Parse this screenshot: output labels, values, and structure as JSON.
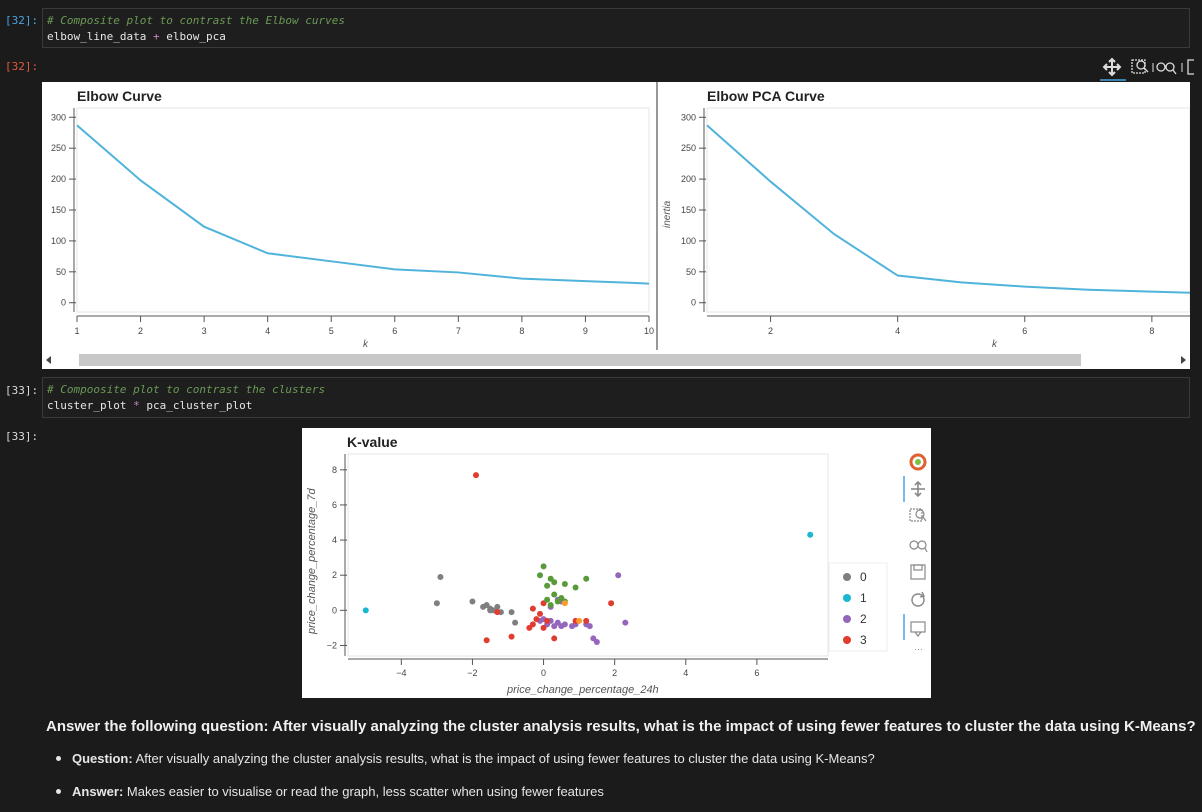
{
  "cells": {
    "c32_in_prompt": "[32]:",
    "c32_code_comment": "# Composite plot to contrast the Elbow curves",
    "c32_code_a": "elbow_line_data",
    "c32_code_op": "+",
    "c32_code_b": "elbow_pca",
    "c32_out_prompt": "[32]:",
    "c33_in_prompt": "[33]:",
    "c33_code_comment": "# Compoosite plot to contrast the clusters",
    "c33_code_a": "cluster_plot",
    "c33_code_op": "*",
    "c33_code_b": "pca_cluster_plot",
    "c33_out_prompt": "[33]:"
  },
  "colors": {
    "line": "#4fb3dc",
    "cluster0": "#7f7f7f",
    "cluster1": "#19b8d0",
    "cluster2": "#9467bd",
    "cluster3": "#e03c2f",
    "green": "#5a9a3a",
    "orange": "#ff9d2a"
  },
  "chart_data": [
    {
      "type": "line",
      "title": "Elbow Curve",
      "xlabel": "k",
      "ylabel": "",
      "x": [
        1,
        2,
        3,
        4,
        5,
        6,
        7,
        8,
        9,
        10
      ],
      "y": [
        287,
        198,
        123,
        80,
        67,
        54,
        49,
        39,
        35,
        31
      ],
      "xlim": [
        1,
        10
      ],
      "ylim": [
        -15,
        315
      ],
      "xticks": [
        1,
        2,
        3,
        4,
        5,
        6,
        7,
        8,
        9,
        10
      ],
      "yticks": [
        0,
        50,
        100,
        150,
        200,
        250,
        300
      ]
    },
    {
      "type": "line",
      "title": "Elbow PCA Curve",
      "xlabel": "k",
      "ylabel": "inertia",
      "x": [
        1,
        2,
        3,
        4,
        5,
        6,
        7,
        8,
        9
      ],
      "y": [
        287,
        196,
        111,
        44,
        33,
        26,
        21,
        18,
        15
      ],
      "xlim": [
        1,
        8.6
      ],
      "ylim": [
        -15,
        315
      ],
      "xticks": [
        2,
        4,
        6,
        8
      ],
      "yticks": [
        0,
        50,
        100,
        150,
        200,
        250,
        300
      ]
    },
    {
      "type": "scatter",
      "title": "K-value",
      "xlabel": "price_change_percentage_24h",
      "ylabel": "price_change_percentage_7d",
      "xlim": [
        -5.5,
        8.0
      ],
      "ylim": [
        -2.6,
        8.9
      ],
      "xticks": [
        -4,
        -2,
        0,
        2,
        4,
        6
      ],
      "yticks": [
        -2,
        0,
        2,
        4,
        6,
        8
      ],
      "legend": [
        "0",
        "1",
        "2",
        "3"
      ],
      "series": [
        {
          "name": "0",
          "points": [
            [
              -2.9,
              1.9
            ],
            [
              -3.0,
              0.4
            ],
            [
              -2.0,
              0.5
            ],
            [
              -1.7,
              0.2
            ],
            [
              -1.6,
              0.3
            ],
            [
              -1.5,
              0.1
            ],
            [
              -1.4,
              0.0
            ],
            [
              -1.2,
              -0.1
            ],
            [
              -0.9,
              -0.1
            ],
            [
              -0.8,
              -0.7
            ],
            [
              -1.3,
              0.2
            ],
            [
              -1.5,
              0.0
            ]
          ]
        },
        {
          "name": "1",
          "points": [
            [
              -5.0,
              0.0
            ],
            [
              7.5,
              4.3
            ]
          ]
        },
        {
          "name": "2",
          "points": [
            [
              0.0,
              -0.5
            ],
            [
              0.1,
              -0.8
            ],
            [
              0.2,
              -0.6
            ],
            [
              0.3,
              -0.9
            ],
            [
              0.4,
              -0.7
            ],
            [
              0.5,
              -0.9
            ],
            [
              0.6,
              -0.8
            ],
            [
              0.8,
              -0.9
            ],
            [
              0.9,
              -0.8
            ],
            [
              1.2,
              -0.8
            ],
            [
              1.4,
              -1.6
            ],
            [
              1.5,
              -1.8
            ],
            [
              1.3,
              -0.9
            ],
            [
              2.1,
              2.0
            ],
            [
              2.3,
              -0.7
            ],
            [
              0.2,
              0.2
            ],
            [
              0.4,
              0.6
            ],
            [
              0.5,
              0.5
            ],
            [
              -0.1,
              -0.6
            ]
          ]
        },
        {
          "name": "3",
          "points": [
            [
              -1.9,
              7.7
            ],
            [
              -1.6,
              -1.7
            ],
            [
              -1.3,
              -0.1
            ],
            [
              -0.9,
              -1.5
            ],
            [
              -0.4,
              -1.0
            ],
            [
              -0.3,
              -0.8
            ],
            [
              -0.2,
              -0.5
            ],
            [
              -0.3,
              0.1
            ],
            [
              -0.1,
              -0.2
            ],
            [
              0.0,
              -1.0
            ],
            [
              0.1,
              -0.6
            ],
            [
              0.3,
              -1.6
            ],
            [
              0.9,
              -0.6
            ],
            [
              1.2,
              -0.6
            ],
            [
              1.9,
              0.4
            ],
            [
              0.0,
              0.4
            ]
          ]
        },
        {
          "name": "green",
          "points": [
            [
              0.0,
              2.5
            ],
            [
              -0.1,
              2.0
            ],
            [
              0.2,
              1.8
            ],
            [
              0.3,
              1.6
            ],
            [
              0.1,
              1.4
            ],
            [
              0.6,
              1.5
            ],
            [
              0.9,
              1.3
            ],
            [
              1.2,
              1.8
            ],
            [
              0.3,
              0.9
            ],
            [
              0.1,
              0.6
            ],
            [
              0.5,
              0.7
            ],
            [
              0.6,
              0.5
            ],
            [
              0.2,
              0.3
            ],
            [
              0.4,
              0.5
            ]
          ]
        },
        {
          "name": "orange",
          "points": [
            [
              1.0,
              -0.6
            ],
            [
              0.6,
              0.4
            ]
          ]
        }
      ]
    }
  ],
  "answer": {
    "title": "Answer the following question: After visually analyzing the cluster analysis results, what is the impact of using fewer features to cluster the data using K-Means?",
    "q_label": "Question:",
    "q_text": " After visually analyzing the cluster analysis results, what is the impact of using fewer features to cluster the data using K-Means?",
    "a_label": "Answer:",
    "a_text": " Makes easier to visualise or read the graph, less scatter when using fewer features"
  }
}
